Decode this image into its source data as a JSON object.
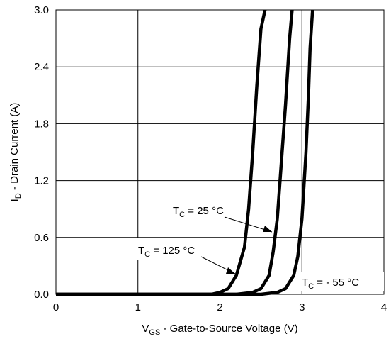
{
  "chart_data": {
    "type": "line",
    "xlabel": "V",
    "xlabel_sub": "GS",
    "xlabel_rest": " - Gate-to-Source Voltage (V)",
    "ylabel": "I",
    "ylabel_sub": "D",
    "ylabel_rest": " -  Drain Current (A)",
    "xlim": [
      0,
      4
    ],
    "ylim": [
      0,
      3.0
    ],
    "x_ticks": [
      "0",
      "1",
      "2",
      "3",
      "4"
    ],
    "y_ticks": [
      "0.0",
      "0.6",
      "1.2",
      "1.8",
      "2.4",
      "3.0"
    ],
    "grid": true,
    "series": [
      {
        "name": "TC = 125 °C",
        "x": [
          0,
          1.9,
          2.0,
          2.1,
          2.2,
          2.3,
          2.35,
          2.4,
          2.45,
          2.5,
          2.55
        ],
        "y": [
          0,
          0,
          0.02,
          0.06,
          0.2,
          0.5,
          0.9,
          1.5,
          2.2,
          2.8,
          3.0
        ]
      },
      {
        "name": "TC = 25 °C",
        "x": [
          0,
          2.2,
          2.4,
          2.5,
          2.6,
          2.65,
          2.7,
          2.75,
          2.8,
          2.85,
          2.88
        ],
        "y": [
          0,
          0,
          0.02,
          0.06,
          0.2,
          0.45,
          0.8,
          1.4,
          2.0,
          2.7,
          3.0
        ]
      },
      {
        "name": "TC = - 55 °C",
        "x": [
          0,
          2.5,
          2.7,
          2.8,
          2.9,
          2.95,
          3.0,
          3.05,
          3.08,
          3.1,
          3.13
        ],
        "y": [
          0,
          0,
          0.02,
          0.06,
          0.2,
          0.4,
          0.8,
          1.5,
          2.1,
          2.6,
          3.0
        ]
      }
    ],
    "annotations": [
      {
        "main": "T",
        "sub": "C",
        "rest": " = 25 °C"
      },
      {
        "main": "T",
        "sub": "C",
        "rest": " = 125 °C"
      },
      {
        "main": "T",
        "sub": "C",
        "rest": " = - 55 °C"
      }
    ]
  }
}
